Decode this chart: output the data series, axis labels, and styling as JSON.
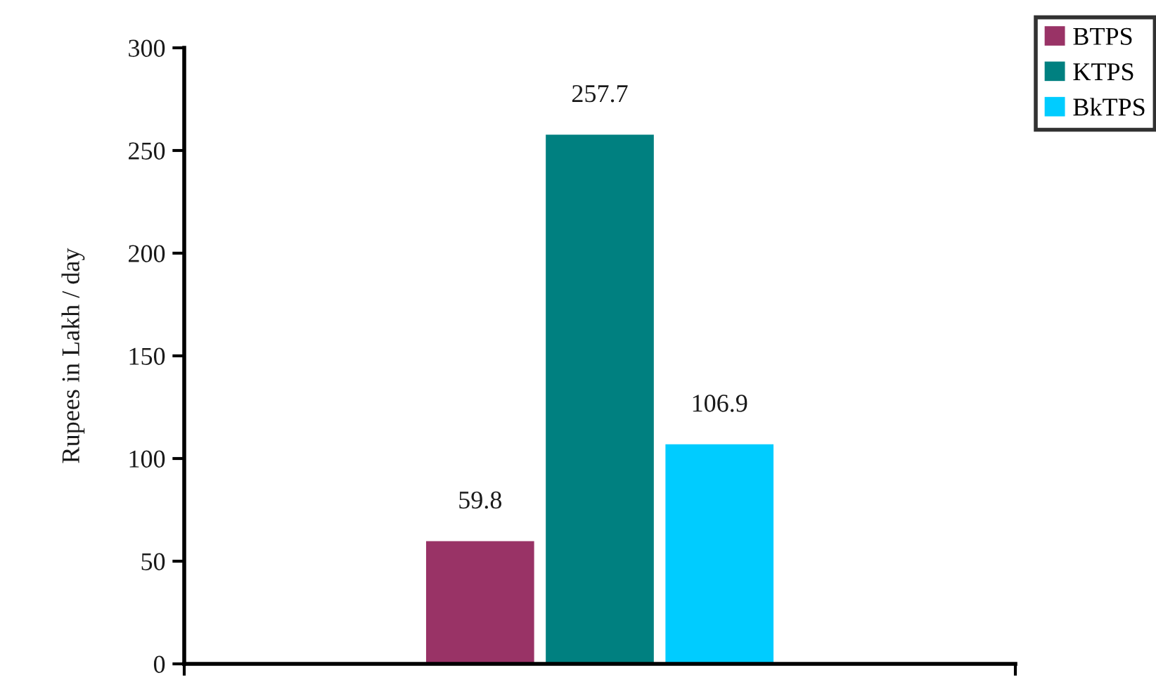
{
  "chart_data": {
    "type": "bar",
    "ylabel": "Rupees in Lakh / day",
    "categories": [
      null
    ],
    "series": [
      {
        "name": "BTPS",
        "color": "#993366",
        "values": [
          59.8
        ]
      },
      {
        "name": "KTPS",
        "color": "#008080",
        "values": [
          257.7
        ]
      },
      {
        "name": "BkTPS",
        "color": "#00ccff",
        "values": [
          106.9
        ]
      }
    ],
    "ylim": [
      0,
      300
    ],
    "yticks": [
      0,
      50,
      100,
      150,
      200,
      250,
      300
    ],
    "data_labels": true,
    "legend": "top right"
  }
}
